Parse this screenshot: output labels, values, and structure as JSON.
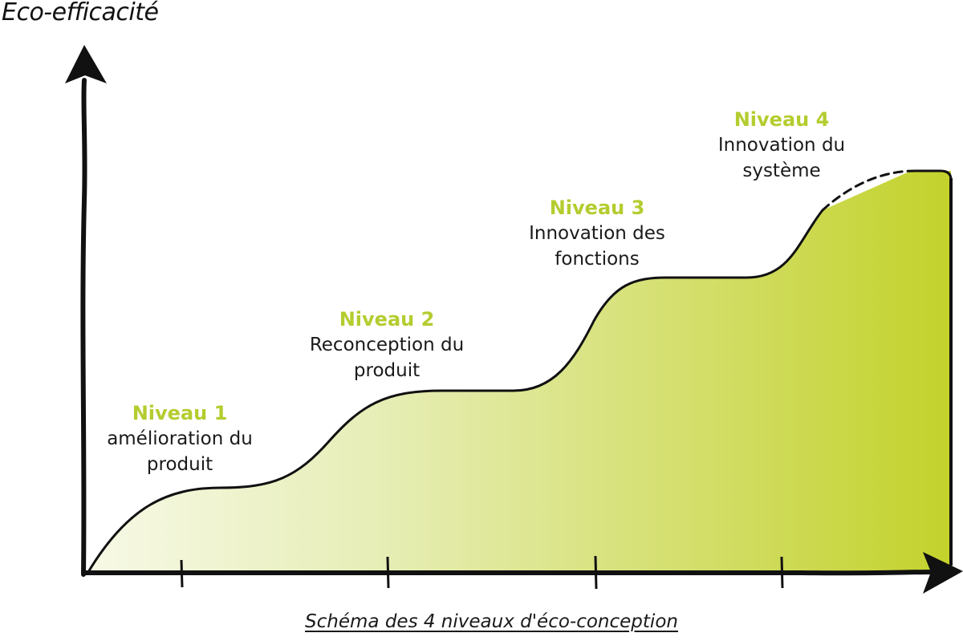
{
  "diagram": {
    "axis_label_y": "Eco-efficacité",
    "caption": "Schéma des 4 niveaux d'éco-conception",
    "colors": {
      "level_title": "#b5cc2f",
      "fill_start": "#f7f9e6",
      "fill_end": "#c3d22c",
      "stroke": "#111111"
    },
    "levels": [
      {
        "title": "Niveau 1",
        "desc_line1": "amélioration du",
        "desc_line2": "produit"
      },
      {
        "title": "Niveau 2",
        "desc_line1": "Reconception du",
        "desc_line2": "produit"
      },
      {
        "title": "Niveau 3",
        "desc_line1": "Innovation des",
        "desc_line2": "fonctions"
      },
      {
        "title": "Niveau 4",
        "desc_line1": "Innovation du",
        "desc_line2": "système"
      }
    ]
  }
}
